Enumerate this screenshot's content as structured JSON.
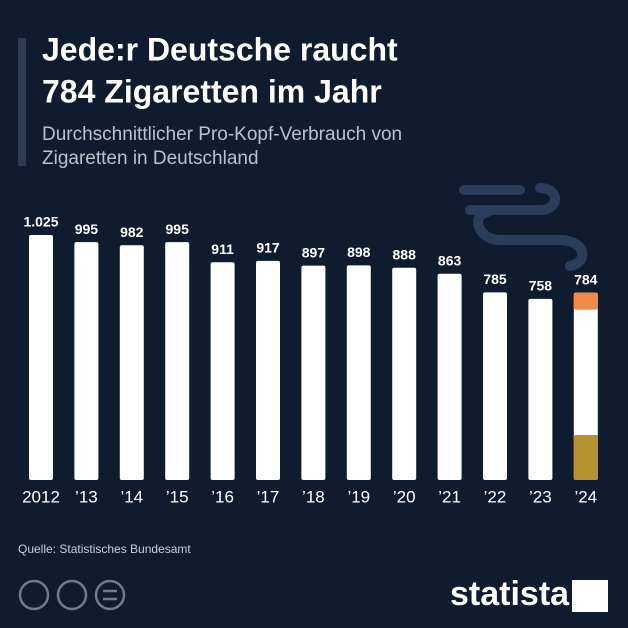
{
  "chart_data": {
    "type": "bar",
    "title": [
      "Jede:r Deutsche raucht",
      "784 Zigaretten im Jahr"
    ],
    "subtitle": [
      "Durchschnittlicher Pro-Kopf-Verbrauch von",
      "Zigaretten in Deutschland"
    ],
    "categories": [
      "2012",
      "’13",
      "’14",
      "’15",
      "’16",
      "’17",
      "’18",
      "’19",
      "’20",
      "’21",
      "’22",
      "’23",
      "’24"
    ],
    "values": [
      1025,
      995,
      982,
      995,
      911,
      917,
      897,
      898,
      888,
      863,
      785,
      758,
      784
    ],
    "value_labels": [
      "1.025",
      "995",
      "982",
      "995",
      "911",
      "917",
      "897",
      "898",
      "888",
      "863",
      "785",
      "758",
      "784"
    ],
    "color": "#ffffff",
    "source": "Quelle: Statistisches Bundesamt",
    "brand": "statista"
  }
}
